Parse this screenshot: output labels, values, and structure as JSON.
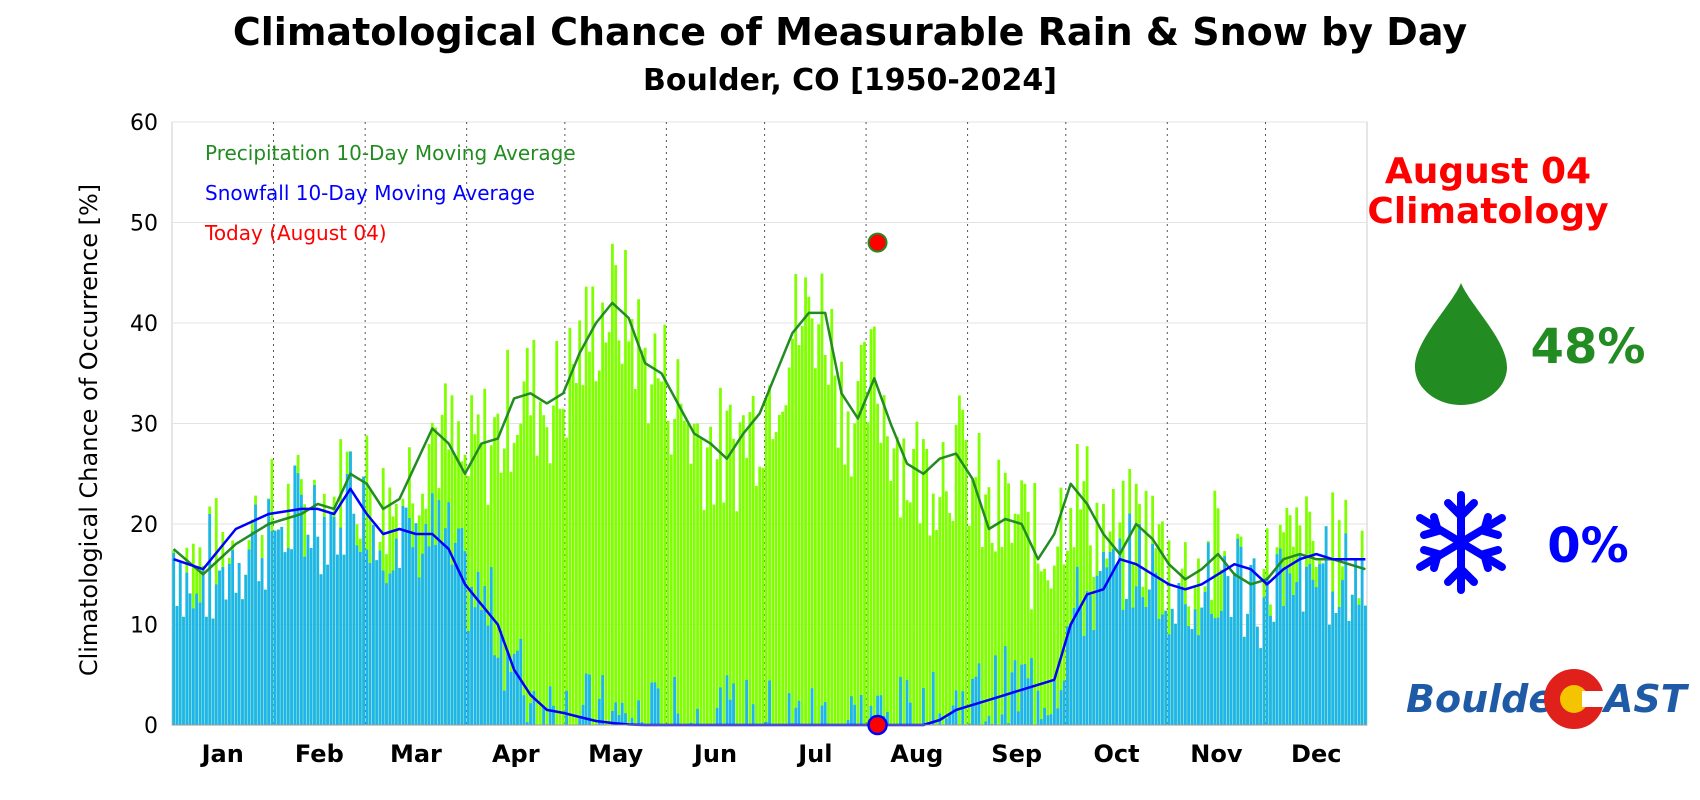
{
  "title": "Climatological Chance of Measurable Rain & Snow by Day",
  "subtitle": "Boulder, CO [1950-2024]",
  "chart_data": {
    "type": "bar",
    "ylabel": "Climatological Chance of Occurrence [%]",
    "ylim": [
      0,
      60
    ],
    "yticks": [
      0,
      10,
      20,
      30,
      40,
      50,
      60
    ],
    "months": [
      "Jan",
      "Feb",
      "Mar",
      "Apr",
      "May",
      "Jun",
      "Jul",
      "Aug",
      "Sep",
      "Oct",
      "Nov",
      "Dec"
    ],
    "grid": true,
    "legend_position": "top-left",
    "legend": [
      {
        "label": "Precipitation 10-Day Moving Average",
        "color": "#228B22"
      },
      {
        "label": "Snowfall 10-Day Moving Average",
        "color": "#0000FF"
      },
      {
        "label": "Today (August 04)",
        "color": "#FF0000"
      }
    ],
    "series": [
      {
        "name": "Precipitation 10-Day Moving Average",
        "color": "#228B22",
        "x": [
          1,
          10,
          20,
          30,
          40,
          45,
          50,
          55,
          60,
          65,
          70,
          75,
          80,
          85,
          90,
          95,
          100,
          105,
          110,
          115,
          120,
          125,
          130,
          135,
          140,
          145,
          150,
          155,
          160,
          165,
          170,
          175,
          180,
          185,
          190,
          195,
          200,
          205,
          210,
          215,
          220,
          225,
          230,
          235,
          240,
          245,
          250,
          255,
          260,
          265,
          270,
          275,
          280,
          285,
          290,
          295,
          300,
          305,
          310,
          315,
          320,
          325,
          330,
          335,
          340,
          345,
          350,
          355,
          360,
          365
        ],
        "y": [
          17.5,
          15,
          18,
          20,
          21,
          22,
          21.5,
          25,
          24,
          21.5,
          22.5,
          26,
          29.5,
          28,
          25,
          28,
          28.5,
          32.5,
          33,
          32,
          33,
          37,
          40,
          42,
          40.5,
          36,
          35,
          32,
          29,
          28,
          26.5,
          29,
          31,
          35,
          39,
          41,
          41,
          33,
          30.5,
          34.5,
          30,
          26,
          25,
          26.5,
          27,
          24.5,
          19.5,
          20.5,
          20,
          16.5,
          19,
          24,
          22,
          19,
          17,
          20,
          18.5,
          16,
          14.5,
          15.5,
          17,
          15,
          14,
          14.5,
          16.5,
          17,
          16.5,
          16.5,
          16,
          15.5
        ]
      },
      {
        "name": "Snowfall 10-Day Moving Average",
        "color": "#0000FF",
        "x": [
          1,
          10,
          20,
          30,
          40,
          45,
          50,
          55,
          60,
          65,
          70,
          75,
          80,
          85,
          90,
          95,
          100,
          105,
          110,
          115,
          120,
          125,
          130,
          135,
          140,
          145,
          150,
          155,
          160,
          165,
          170,
          175,
          180,
          185,
          190,
          195,
          200,
          205,
          210,
          215,
          220,
          225,
          230,
          235,
          240,
          245,
          250,
          255,
          260,
          265,
          270,
          275,
          280,
          285,
          290,
          295,
          300,
          305,
          310,
          315,
          320,
          325,
          330,
          335,
          340,
          345,
          350,
          355,
          360,
          365
        ],
        "y": [
          16.5,
          15.5,
          19.5,
          21,
          21.5,
          21.5,
          21,
          23.5,
          21,
          19,
          19.5,
          19,
          19,
          17.5,
          14,
          12,
          10,
          5.5,
          3,
          1.5,
          1.2,
          0.8,
          0.4,
          0.2,
          0.05,
          0,
          0,
          0,
          0,
          0,
          0,
          0,
          0,
          0,
          0,
          0,
          0,
          0,
          0,
          0,
          0,
          0,
          0,
          0.5,
          1.5,
          2,
          2.5,
          3,
          3.5,
          4,
          4.5,
          10,
          13,
          13.5,
          16.5,
          16,
          15,
          14,
          13.5,
          14,
          15,
          16,
          15.5,
          14,
          15.5,
          16.5,
          17,
          16.5,
          16.5,
          16.5
        ]
      }
    ],
    "bar_description": "Daily bars: green = precipitation chance, blue (cyan) = snowfall chance, per day of year",
    "today": {
      "label": "August 04",
      "day_of_year": 216,
      "precipitation": 48,
      "snowfall": 0
    }
  },
  "panel": {
    "heading_line1": "August 04",
    "heading_line2": "Climatology",
    "rain_icon": "raindrop-icon",
    "rain_value": "48%",
    "snow_icon": "snowflake-icon",
    "snow_value": "0%",
    "logo_text_left": "Boulder",
    "logo_text_right": "AST",
    "colors": {
      "heading": "#FF0000",
      "rain": "#228B22",
      "snow": "#0000FF",
      "logo_blue": "#1F5AA6",
      "logo_red": "#E0201B",
      "logo_yellow": "#F5C400"
    }
  }
}
